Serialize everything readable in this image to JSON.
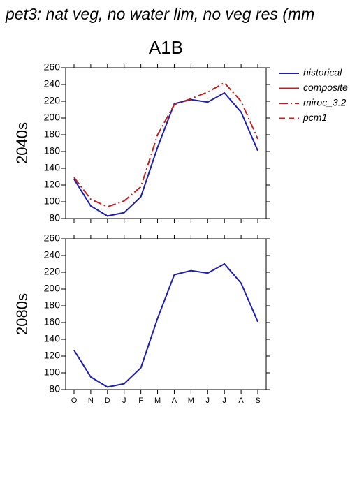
{
  "title": "pet3: nat veg, no water lim, no veg res (mm",
  "legend": [
    {
      "name": "historical",
      "color": "#2020b0",
      "dash": "none"
    },
    {
      "name": "composite",
      "color": "#c02020",
      "dash": "none"
    },
    {
      "name": "miroc_3.2",
      "color": "#c02020",
      "dash": "12 4 2 4"
    },
    {
      "name": "pcm1",
      "color": "#c02020",
      "dash": "8 5"
    }
  ],
  "chart_data": [
    {
      "type": "line",
      "title": "A1B",
      "row_label": "2040s",
      "categories": [
        "O",
        "N",
        "D",
        "J",
        "F",
        "M",
        "A",
        "M",
        "J",
        "J",
        "A",
        "S"
      ],
      "series": [
        {
          "name": "historical",
          "color": "#2020b0",
          "dash": "none",
          "values": [
            127,
            95,
            83,
            87,
            106,
            165,
            217,
            222,
            219,
            230,
            207,
            161
          ]
        },
        {
          "name": "miroc_3.2",
          "color": "#c02020",
          "dash": "12 4 2 4",
          "values": [
            129,
            103,
            94,
            101,
            118,
            180,
            216,
            223,
            231,
            242,
            220,
            175
          ]
        }
      ],
      "ylim": [
        80,
        260
      ],
      "yticks": [
        80,
        100,
        120,
        140,
        160,
        180,
        200,
        220,
        240,
        260
      ]
    },
    {
      "type": "line",
      "row_label": "2080s",
      "categories": [
        "O",
        "N",
        "D",
        "J",
        "F",
        "M",
        "A",
        "M",
        "J",
        "J",
        "A",
        "S"
      ],
      "series": [
        {
          "name": "historical",
          "color": "#2020b0",
          "dash": "none",
          "values": [
            127,
            95,
            83,
            87,
            106,
            165,
            217,
            222,
            219,
            230,
            207,
            161
          ]
        }
      ],
      "ylim": [
        80,
        260
      ],
      "yticks": [
        80,
        100,
        120,
        140,
        160,
        180,
        200,
        220,
        240,
        260
      ]
    }
  ]
}
